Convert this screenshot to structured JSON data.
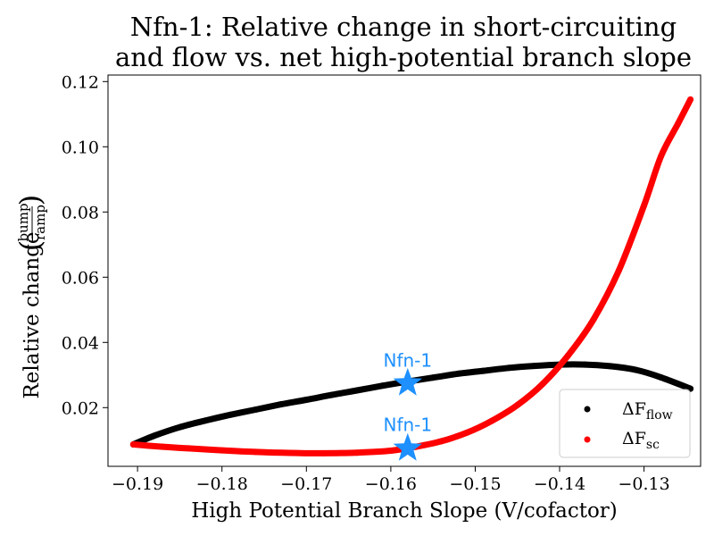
{
  "chart_data": {
    "type": "scatter",
    "title_lines": [
      "Nfn-1: Relative change in short-circuiting",
      "and flow vs. net high-potential branch slope"
    ],
    "xlabel": "High Potential Branch Slope (V/cofactor)",
    "ylabel": "Relative change",
    "ylabel_fraction": {
      "numerator": "bump",
      "denominator": "ramp"
    },
    "xlim": [
      -0.1935,
      -0.1233
    ],
    "ylim": [
      0.002,
      0.122
    ],
    "x_ticks": [
      -0.19,
      -0.18,
      -0.17,
      -0.16,
      -0.15,
      -0.14,
      -0.13
    ],
    "x_tick_labels": [
      "−0.19",
      "−0.18",
      "−0.17",
      "−0.16",
      "−0.15",
      "−0.14",
      "−0.13"
    ],
    "y_ticks": [
      0.02,
      0.04,
      0.06,
      0.08,
      0.1,
      0.12
    ],
    "y_tick_labels": [
      "0.02",
      "0.04",
      "0.06",
      "0.08",
      "0.10",
      "0.12"
    ],
    "grid": false,
    "legend_position": "lower-right",
    "series": [
      {
        "name": "flow",
        "legend_main": "ΔF",
        "legend_sub": "flow",
        "color": "#000000",
        "x": [
          -0.1905,
          -0.188,
          -0.185,
          -0.182,
          -0.179,
          -0.176,
          -0.173,
          -0.17,
          -0.167,
          -0.164,
          -0.161,
          -0.158,
          -0.155,
          -0.152,
          -0.149,
          -0.146,
          -0.143,
          -0.14,
          -0.137,
          -0.134,
          -0.131,
          -0.128,
          -0.1245
        ],
        "y": [
          0.0087,
          0.0114,
          0.014,
          0.016,
          0.0178,
          0.0194,
          0.021,
          0.0224,
          0.0239,
          0.0253,
          0.0267,
          0.028,
          0.0292,
          0.0304,
          0.0313,
          0.0322,
          0.0328,
          0.0332,
          0.0332,
          0.0327,
          0.0316,
          0.0293,
          0.0258
        ]
      },
      {
        "name": "sc",
        "legend_main": "ΔF",
        "legend_sub": "sc",
        "color": "#ff0000",
        "x": [
          -0.1905,
          -0.187,
          -0.184,
          -0.18,
          -0.176,
          -0.172,
          -0.168,
          -0.164,
          -0.16,
          -0.157,
          -0.154,
          -0.151,
          -0.148,
          -0.145,
          -0.142,
          -0.139,
          -0.136,
          -0.133,
          -0.13,
          -0.128,
          -0.126,
          -0.1245
        ],
        "y": [
          0.0087,
          0.008,
          0.0075,
          0.0069,
          0.0064,
          0.0061,
          0.006,
          0.0062,
          0.0068,
          0.008,
          0.0097,
          0.0123,
          0.016,
          0.0208,
          0.0273,
          0.036,
          0.047,
          0.062,
          0.082,
          0.097,
          0.107,
          0.1145
        ]
      }
    ],
    "annotations": [
      {
        "text": "Nfn-1",
        "x": -0.158,
        "y": 0.0275,
        "label_y": 0.0345,
        "marker": "star",
        "color": "#1e90ff"
      },
      {
        "text": "Nfn-1",
        "x": -0.158,
        "y": 0.0075,
        "label_y": 0.0147,
        "marker": "star",
        "color": "#1e90ff"
      }
    ]
  }
}
